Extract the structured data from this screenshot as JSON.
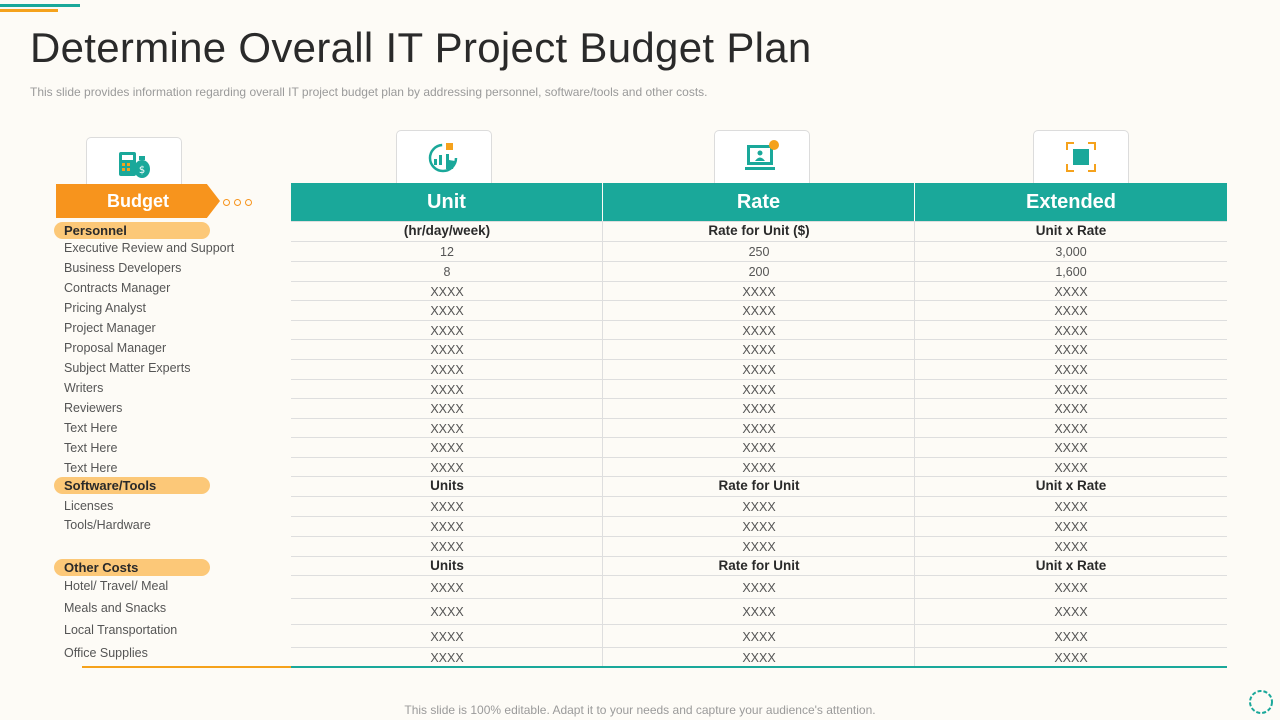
{
  "title": "Determine Overall IT Project Budget Plan",
  "subtitle": "This slide provides information regarding overall IT project budget plan by addressing personnel, software/tools and other costs.",
  "budget_label": "Budget",
  "columns": [
    "Unit",
    "Rate",
    "Extended"
  ],
  "icons": [
    "calculator-money-icon",
    "growth-chart-hand-icon",
    "computer-user-icon",
    "focus-square-icon"
  ],
  "sections": [
    {
      "name": "Personnel",
      "header_row": [
        "(hr/day/week)",
        "Rate for Unit ($)",
        "Unit x Rate"
      ],
      "rows": [
        {
          "label": "Executive Review and Support",
          "values": [
            "12",
            "250",
            "3,000"
          ]
        },
        {
          "label": "Business Developers",
          "values": [
            "8",
            "200",
            "1,600"
          ]
        },
        {
          "label": "Contracts Manager",
          "values": [
            "XXXX",
            "XXXX",
            "XXXX"
          ]
        },
        {
          "label": "Pricing Analyst",
          "values": [
            "XXXX",
            "XXXX",
            "XXXX"
          ]
        },
        {
          "label": "Project Manager",
          "values": [
            "XXXX",
            "XXXX",
            "XXXX"
          ]
        },
        {
          "label": "Proposal Manager",
          "values": [
            "XXXX",
            "XXXX",
            "XXXX"
          ]
        },
        {
          "label": "Subject Matter Experts",
          "values": [
            "XXXX",
            "XXXX",
            "XXXX"
          ]
        },
        {
          "label": "Writers",
          "values": [
            "XXXX",
            "XXXX",
            "XXXX"
          ]
        },
        {
          "label": "Reviewers",
          "values": [
            "XXXX",
            "XXXX",
            "XXXX"
          ]
        },
        {
          "label": "Text Here",
          "values": [
            "XXXX",
            "XXXX",
            "XXXX"
          ]
        },
        {
          "label": "Text Here",
          "values": [
            "XXXX",
            "XXXX",
            "XXXX"
          ]
        },
        {
          "label": "Text Here",
          "values": [
            "XXXX",
            "XXXX",
            "XXXX"
          ]
        }
      ]
    },
    {
      "name": "Software/Tools",
      "header_row": [
        "Units",
        "Rate for Unit",
        "Unit x Rate"
      ],
      "rows": [
        {
          "label": "Licenses",
          "values": [
            "XXXX",
            "XXXX",
            "XXXX"
          ]
        },
        {
          "label": "Tools/Hardware",
          "values": [
            "XXXX",
            "XXXX",
            "XXXX"
          ]
        },
        {
          "label": "",
          "values": [
            "XXXX",
            "XXXX",
            "XXXX"
          ]
        }
      ]
    },
    {
      "name": "Other Costs",
      "header_row": [
        "Units",
        "Rate for Unit",
        "Unit x Rate"
      ],
      "rows": [
        {
          "label": "Hotel/ Travel/ Meal",
          "values": [
            "XXXX",
            "XXXX",
            "XXXX"
          ]
        },
        {
          "label": "Meals and Snacks",
          "values": [
            "XXXX",
            "XXXX",
            "XXXX"
          ]
        },
        {
          "label": "Local Transportation",
          "values": [
            "XXXX",
            "XXXX",
            "XXXX"
          ]
        },
        {
          "label": "Office Supplies",
          "values": [
            "XXXX",
            "XXXX",
            "XXXX"
          ]
        }
      ]
    }
  ],
  "footer": "This slide is 100% editable. Adapt it to your needs and capture your audience's attention.",
  "colors": {
    "teal": "#1aa89a",
    "orange": "#f7941d",
    "pill": "#fcc878"
  }
}
